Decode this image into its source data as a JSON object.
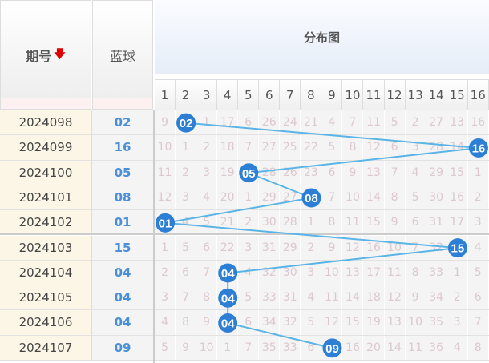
{
  "header": {
    "issue_label": "期号",
    "sort_icon": "arrow-down-icon",
    "blue_label": "蓝球",
    "dist_label": "分布图",
    "columns": [
      "1",
      "2",
      "3",
      "4",
      "5",
      "6",
      "7",
      "8",
      "9",
      "10",
      "11",
      "12",
      "13",
      "14",
      "15",
      "16"
    ]
  },
  "colors": {
    "ball": "#2d7fd6",
    "line": "#5ab4e5",
    "blue_text": "#4a90d9"
  },
  "rows": [
    {
      "issue": "2024098",
      "blue": "02",
      "hit": 2,
      "cells": [
        "9",
        "02",
        "1",
        "17",
        "6",
        "26",
        "24",
        "21",
        "4",
        "7",
        "11",
        "5",
        "2",
        "27",
        "13",
        "16"
      ]
    },
    {
      "issue": "2024099",
      "blue": "16",
      "hit": 16,
      "cells": [
        "10",
        "1",
        "2",
        "18",
        "7",
        "27",
        "25",
        "22",
        "5",
        "8",
        "12",
        "6",
        "3",
        "28",
        "14",
        "16"
      ]
    },
    {
      "issue": "2024100",
      "blue": "05",
      "hit": 5,
      "cells": [
        "11",
        "2",
        "3",
        "19",
        "05",
        "28",
        "26",
        "23",
        "6",
        "9",
        "13",
        "7",
        "4",
        "29",
        "15",
        "1"
      ]
    },
    {
      "issue": "2024101",
      "blue": "08",
      "hit": 8,
      "cells": [
        "12",
        "3",
        "4",
        "20",
        "1",
        "29",
        "27",
        "08",
        "7",
        "10",
        "14",
        "8",
        "5",
        "30",
        "16",
        "2"
      ]
    },
    {
      "issue": "2024102",
      "blue": "01",
      "hit": 1,
      "cells": [
        "01",
        "4",
        "5",
        "21",
        "2",
        "30",
        "28",
        "1",
        "8",
        "11",
        "15",
        "9",
        "6",
        "31",
        "17",
        "3"
      ]
    },
    {
      "issue": "2024103",
      "blue": "15",
      "hit": 15,
      "cells": [
        "1",
        "5",
        "6",
        "22",
        "3",
        "31",
        "29",
        "2",
        "9",
        "12",
        "16",
        "10",
        "7",
        "32",
        "15",
        "4"
      ]
    },
    {
      "issue": "2024104",
      "blue": "04",
      "hit": 4,
      "cells": [
        "2",
        "6",
        "7",
        "04",
        "4",
        "32",
        "30",
        "3",
        "10",
        "13",
        "17",
        "11",
        "8",
        "33",
        "1",
        "5"
      ]
    },
    {
      "issue": "2024105",
      "blue": "04",
      "hit": 4,
      "cells": [
        "3",
        "7",
        "8",
        "04",
        "5",
        "33",
        "31",
        "4",
        "11",
        "14",
        "18",
        "12",
        "9",
        "34",
        "2",
        "6"
      ]
    },
    {
      "issue": "2024106",
      "blue": "04",
      "hit": 4,
      "cells": [
        "4",
        "8",
        "9",
        "04",
        "6",
        "34",
        "32",
        "5",
        "12",
        "15",
        "19",
        "13",
        "10",
        "35",
        "3",
        "7"
      ]
    },
    {
      "issue": "2024107",
      "blue": "09",
      "hit": 9,
      "cells": [
        "5",
        "9",
        "10",
        "1",
        "7",
        "35",
        "33",
        "6",
        "09",
        "16",
        "20",
        "14",
        "11",
        "36",
        "4",
        "8"
      ]
    }
  ]
}
